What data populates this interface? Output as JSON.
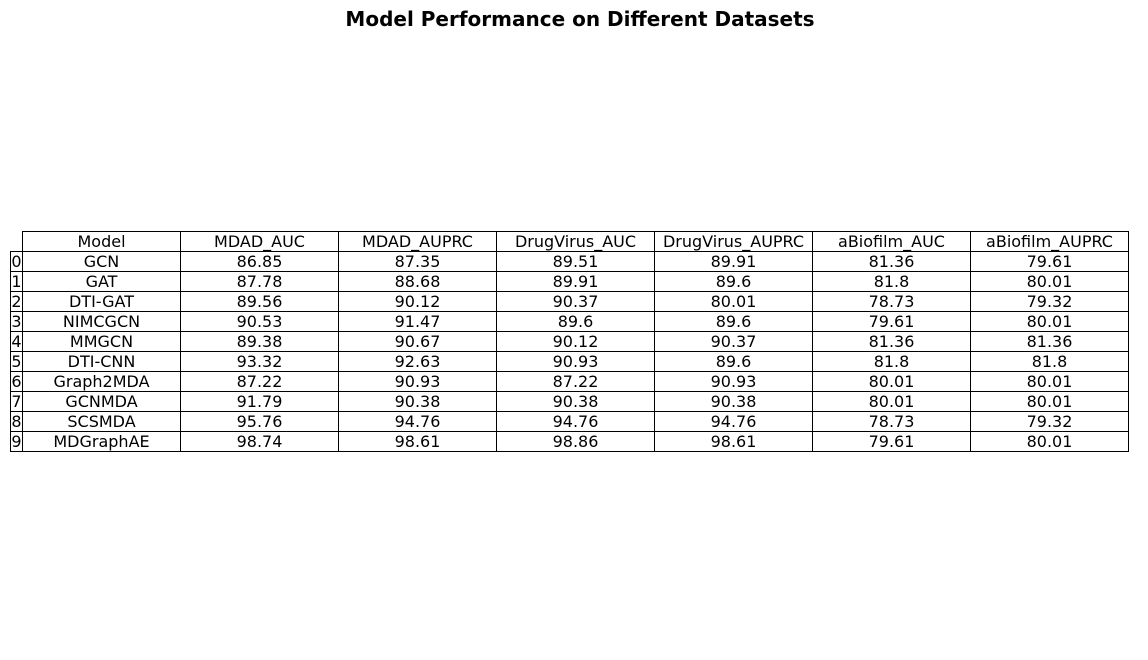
{
  "chart_data": {
    "type": "table",
    "title": "Model Performance on Different Datasets",
    "columns": [
      "Model",
      "MDAD_AUC",
      "MDAD_AUPRC",
      "DrugVirus_AUC",
      "DrugVirus_AUPRC",
      "aBiofilm_AUC",
      "aBiofilm_AUPRC"
    ],
    "rows": [
      {
        "index": "0",
        "cells": [
          "GCN",
          "86.85",
          "87.35",
          "89.51",
          "89.91",
          "81.36",
          "79.61"
        ]
      },
      {
        "index": "1",
        "cells": [
          "GAT",
          "87.78",
          "88.68",
          "89.91",
          "89.6",
          "81.8",
          "80.01"
        ]
      },
      {
        "index": "2",
        "cells": [
          "DTI-GAT",
          "89.56",
          "90.12",
          "90.37",
          "80.01",
          "78.73",
          "79.32"
        ]
      },
      {
        "index": "3",
        "cells": [
          "NIMCGCN",
          "90.53",
          "91.47",
          "89.6",
          "89.6",
          "79.61",
          "80.01"
        ]
      },
      {
        "index": "4",
        "cells": [
          "MMGCN",
          "89.38",
          "90.67",
          "90.12",
          "90.37",
          "81.36",
          "81.36"
        ]
      },
      {
        "index": "5",
        "cells": [
          "DTI-CNN",
          "93.32",
          "92.63",
          "90.93",
          "89.6",
          "81.8",
          "81.8"
        ]
      },
      {
        "index": "6",
        "cells": [
          "Graph2MDA",
          "87.22",
          "90.93",
          "87.22",
          "90.93",
          "80.01",
          "80.01"
        ]
      },
      {
        "index": "7",
        "cells": [
          "GCNMDA",
          "91.79",
          "90.38",
          "90.38",
          "90.38",
          "80.01",
          "80.01"
        ]
      },
      {
        "index": "8",
        "cells": [
          "SCSMDA",
          "95.76",
          "94.76",
          "94.76",
          "94.76",
          "78.73",
          "79.32"
        ]
      },
      {
        "index": "9",
        "cells": [
          "MDGraphAE",
          "98.74",
          "98.61",
          "98.86",
          "98.61",
          "79.61",
          "80.01"
        ]
      }
    ]
  }
}
